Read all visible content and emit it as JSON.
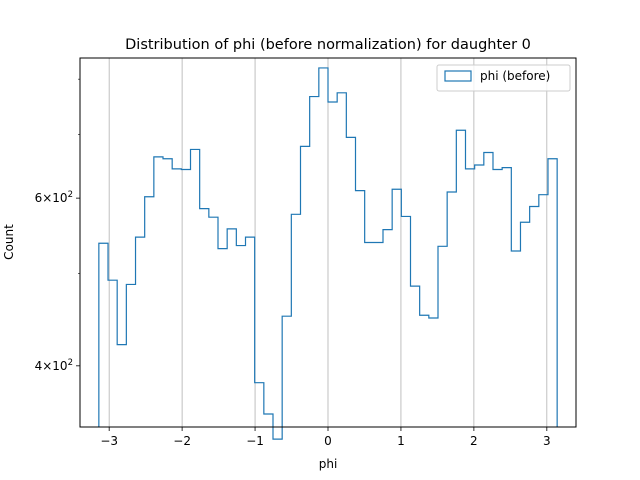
{
  "chart_data": {
    "type": "histogram-step",
    "title": "Distribution of phi (before normalization) for daughter 0",
    "xlabel": "phi",
    "ylabel": "Count",
    "xlim": [
      -3.4,
      3.4
    ],
    "ylim": [
      345,
      842
    ],
    "yscale": "log",
    "grid": "x-major",
    "legend_position": "top-right",
    "series": [
      {
        "name": "phi (before)",
        "color": "#1f77b4"
      }
    ],
    "x_ticks": [
      {
        "value": -3,
        "label": "−3"
      },
      {
        "value": -2,
        "label": "−2"
      },
      {
        "value": -1,
        "label": "−1"
      },
      {
        "value": 0,
        "label": "0"
      },
      {
        "value": 1,
        "label": "1"
      },
      {
        "value": 2,
        "label": "2"
      },
      {
        "value": 3,
        "label": "3"
      }
    ],
    "y_major_ticks": [
      {
        "value": 400,
        "label_base": "4×10",
        "label_exp": "2"
      },
      {
        "value": 600,
        "label_base": "6×10",
        "label_exp": "2"
      }
    ],
    "y_minor_ticks": [
      500,
      700,
      800
    ],
    "bin_edges": [
      -3.1416,
      -3.0159,
      -2.8903,
      -2.7646,
      -2.6389,
      -2.5133,
      -2.3876,
      -2.2619,
      -2.1363,
      -2.0106,
      -1.885,
      -1.7593,
      -1.6336,
      -1.508,
      -1.3823,
      -1.2566,
      -1.131,
      -1.0053,
      -0.8796,
      -0.754,
      -0.6283,
      -0.5027,
      -0.377,
      -0.2513,
      -0.1257,
      0.0,
      0.1257,
      0.2513,
      0.377,
      0.5027,
      0.6283,
      0.754,
      0.8796,
      1.0053,
      1.131,
      1.2566,
      1.3823,
      1.508,
      1.6336,
      1.7593,
      1.885,
      2.0106,
      2.1363,
      2.2619,
      2.3876,
      2.5133,
      2.6389,
      2.7646,
      2.8903,
      3.0159,
      3.1416
    ],
    "counts": [
      538,
      492,
      421,
      487,
      546,
      602,
      663,
      660,
      644,
      643,
      675,
      585,
      573,
      531,
      557,
      535,
      546,
      384,
      356,
      335,
      451,
      577,
      680,
      767,
      822,
      757,
      774,
      695,
      611,
      539,
      539,
      556,
      613,
      574,
      485,
      452,
      449,
      534,
      609,
      707,
      644,
      650,
      670,
      643,
      646,
      528,
      566,
      588,
      605,
      660
    ]
  }
}
